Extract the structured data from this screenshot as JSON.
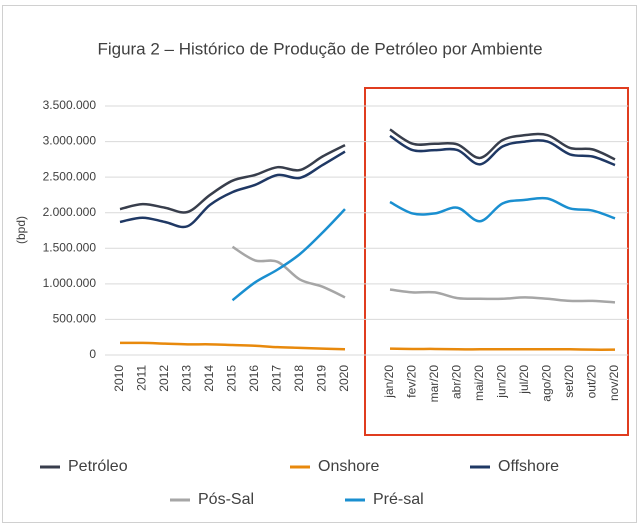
{
  "chart_data": {
    "type": "line",
    "title": "Figura 2 – Histórico de Produção de Petróleo por Ambiente",
    "y_label": "(bpd)",
    "categories": [
      "2010",
      "2011",
      "2012",
      "2013",
      "2014",
      "2015",
      "2016",
      "2017",
      "2018",
      "2019",
      "2020",
      null,
      "jan/20",
      "fev/20",
      "mar/20",
      "abr/20",
      "mai/20",
      "jun/20",
      "jul/20",
      "ago/20",
      "set/20",
      "out/20",
      "nov/20"
    ],
    "ylim": [
      0,
      3500000
    ],
    "yticks": [
      0,
      {
        "value": 500000,
        "label": "500.000"
      },
      {
        "value": 1000000,
        "label": "1.000.000"
      },
      {
        "value": 1500000,
        "label": "1.500.000"
      },
      {
        "value": 2000000,
        "label": "2.000.000"
      },
      {
        "value": 2500000,
        "label": "2.500.000"
      },
      {
        "value": 3000000,
        "label": "3.000.000"
      },
      {
        "value": 3500000,
        "label": "3.500.000"
      }
    ],
    "grid": true,
    "legend": "bottom",
    "series": [
      {
        "name": "Petróleo",
        "color": "#383e4c",
        "values": [
          2050000,
          2120000,
          2070000,
          2010000,
          2250000,
          2450000,
          2530000,
          2640000,
          2600000,
          2790000,
          2950000,
          null,
          3170000,
          2970000,
          2970000,
          2960000,
          2770000,
          3020000,
          3090000,
          3090000,
          2910000,
          2890000,
          2750000
        ]
      },
      {
        "name": "Onshore",
        "color": "#e8890c",
        "values": [
          170000,
          170000,
          160000,
          150000,
          150000,
          140000,
          130000,
          110000,
          100000,
          90000,
          80000,
          null,
          90000,
          85000,
          85000,
          80000,
          80000,
          80000,
          80000,
          80000,
          80000,
          75000,
          75000
        ]
      },
      {
        "name": "Offshore",
        "color": "#1f3864",
        "values": [
          1870000,
          1930000,
          1870000,
          1810000,
          2110000,
          2290000,
          2390000,
          2530000,
          2490000,
          2670000,
          2860000,
          null,
          3080000,
          2880000,
          2880000,
          2880000,
          2680000,
          2930000,
          3000000,
          3000000,
          2820000,
          2790000,
          2670000
        ]
      },
      {
        "name": "Pós-Sal",
        "color": "#a6a6a6",
        "values": [
          null,
          null,
          null,
          null,
          null,
          1520000,
          1330000,
          1310000,
          1060000,
          960000,
          810000,
          null,
          920000,
          880000,
          880000,
          800000,
          790000,
          790000,
          810000,
          790000,
          760000,
          760000,
          740000
        ]
      },
      {
        "name": "Pré-sal",
        "color": "#1a8fd0",
        "values": [
          null,
          null,
          null,
          null,
          null,
          770000,
          1020000,
          1200000,
          1420000,
          1720000,
          2050000,
          null,
          2150000,
          1990000,
          1990000,
          2070000,
          1880000,
          2130000,
          2180000,
          2200000,
          2060000,
          2030000,
          1920000
        ]
      }
    ]
  }
}
